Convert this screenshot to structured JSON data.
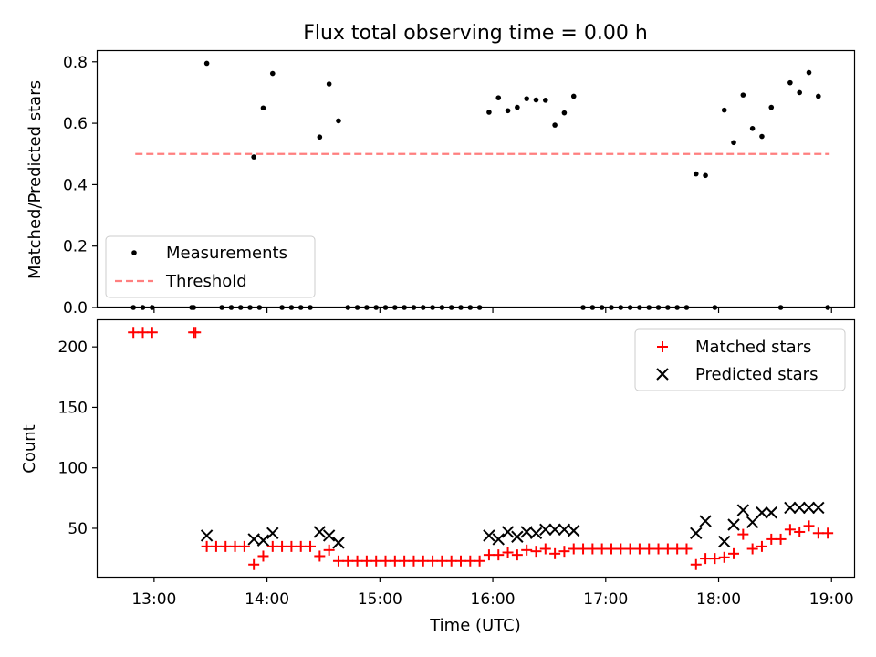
{
  "chart_data": [
    {
      "type": "scatter",
      "title": "Flux total observing time = 0.00 h",
      "xlabel": "",
      "ylabel": "Matched/Predicted stars",
      "xlim": [
        "12:30",
        "19:12"
      ],
      "ylim": [
        0,
        0.835
      ],
      "yticks": [
        0.0,
        0.2,
        0.4,
        0.6,
        0.8
      ],
      "ytick_labels": [
        "0.0",
        "0.2",
        "0.4",
        "0.6",
        "0.8"
      ],
      "legend_position": "lower-left",
      "threshold": {
        "name": "Threshold",
        "value": 0.5,
        "x_start": "12:50",
        "x_end": "18:59",
        "color": "#ff7f7f",
        "style": "dashed"
      },
      "series": [
        {
          "name": "Measurements",
          "color": "#000000",
          "marker": "dot",
          "points": [
            [
              "12:49",
              0
            ],
            [
              "12:54",
              0
            ],
            [
              "12:59",
              0
            ],
            [
              "13:20",
              0
            ],
            [
              "13:21",
              0
            ],
            [
              "13:28",
              0.795
            ],
            [
              "13:36",
              0
            ],
            [
              "13:41",
              0
            ],
            [
              "13:46",
              0
            ],
            [
              "13:51",
              0
            ],
            [
              "13:56",
              0
            ],
            [
              "13:53",
              0.49
            ],
            [
              "13:58",
              0.65
            ],
            [
              "14:03",
              0.762
            ],
            [
              "14:08",
              0
            ],
            [
              "14:13",
              0
            ],
            [
              "14:18",
              0
            ],
            [
              "14:23",
              0
            ],
            [
              "14:28",
              0.555
            ],
            [
              "14:33",
              0.728
            ],
            [
              "14:38",
              0.608
            ],
            [
              "14:43",
              0
            ],
            [
              "14:48",
              0
            ],
            [
              "14:53",
              0
            ],
            [
              "14:58",
              0
            ],
            [
              "15:03",
              0
            ],
            [
              "15:08",
              0
            ],
            [
              "15:13",
              0
            ],
            [
              "15:18",
              0
            ],
            [
              "15:23",
              0
            ],
            [
              "15:28",
              0
            ],
            [
              "15:33",
              0
            ],
            [
              "15:38",
              0
            ],
            [
              "15:43",
              0
            ],
            [
              "15:48",
              0
            ],
            [
              "15:53",
              0
            ],
            [
              "15:58",
              0.636
            ],
            [
              "16:03",
              0.683
            ],
            [
              "16:08",
              0.641
            ],
            [
              "16:13",
              0.652
            ],
            [
              "16:18",
              0.68
            ],
            [
              "16:23",
              0.676
            ],
            [
              "16:28",
              0.675
            ],
            [
              "16:33",
              0.594
            ],
            [
              "16:38",
              0.634
            ],
            [
              "16:43",
              0.688
            ],
            [
              "16:48",
              0
            ],
            [
              "16:53",
              0
            ],
            [
              "16:58",
              0
            ],
            [
              "17:03",
              0
            ],
            [
              "17:08",
              0
            ],
            [
              "17:13",
              0
            ],
            [
              "17:18",
              0
            ],
            [
              "17:23",
              0
            ],
            [
              "17:28",
              0
            ],
            [
              "17:33",
              0
            ],
            [
              "17:38",
              0
            ],
            [
              "17:43",
              0
            ],
            [
              "17:48",
              0.435
            ],
            [
              "17:53",
              0.43
            ],
            [
              "17:58",
              0
            ],
            [
              "18:03",
              0.643
            ],
            [
              "18:08",
              0.537
            ],
            [
              "18:13",
              0.692
            ],
            [
              "18:18",
              0.583
            ],
            [
              "18:23",
              0.557
            ],
            [
              "18:28",
              0.652
            ],
            [
              "18:33",
              0
            ],
            [
              "18:38",
              0.732
            ],
            [
              "18:43",
              0.7
            ],
            [
              "18:48",
              0.765
            ],
            [
              "18:53",
              0.688
            ],
            [
              "18:58",
              0
            ]
          ]
        }
      ]
    },
    {
      "type": "scatter",
      "title": "",
      "xlabel": "Time (UTC)",
      "ylabel": "Count",
      "xlim": [
        "12:30",
        "19:12"
      ],
      "ylim": [
        10,
        222
      ],
      "yticks": [
        50,
        100,
        150,
        200
      ],
      "ytick_labels": [
        "50",
        "100",
        "150",
        "200"
      ],
      "xticks": [
        "13:00",
        "14:00",
        "15:00",
        "16:00",
        "17:00",
        "18:00",
        "19:00"
      ],
      "legend_position": "top-right",
      "series": [
        {
          "name": "Matched stars",
          "color": "#ff0000",
          "marker": "plus",
          "points": [
            [
              "12:49",
              212
            ],
            [
              "12:54",
              212
            ],
            [
              "12:59",
              212
            ],
            [
              "13:21",
              212
            ],
            [
              "13:22",
              212
            ],
            [
              "13:28",
              35
            ],
            [
              "13:33",
              35
            ],
            [
              "13:38",
              35
            ],
            [
              "13:43",
              35
            ],
            [
              "13:48",
              35
            ],
            [
              "13:53",
              20
            ],
            [
              "13:58",
              27
            ],
            [
              "14:03",
              35
            ],
            [
              "14:08",
              35
            ],
            [
              "14:13",
              35
            ],
            [
              "14:18",
              35
            ],
            [
              "14:23",
              35
            ],
            [
              "14:28",
              27
            ],
            [
              "14:33",
              32
            ],
            [
              "14:38",
              23
            ],
            [
              "14:43",
              23
            ],
            [
              "14:48",
              23
            ],
            [
              "14:53",
              23
            ],
            [
              "14:58",
              23
            ],
            [
              "15:03",
              23
            ],
            [
              "15:08",
              23
            ],
            [
              "15:13",
              23
            ],
            [
              "15:18",
              23
            ],
            [
              "15:23",
              23
            ],
            [
              "15:28",
              23
            ],
            [
              "15:33",
              23
            ],
            [
              "15:38",
              23
            ],
            [
              "15:43",
              23
            ],
            [
              "15:48",
              23
            ],
            [
              "15:53",
              23
            ],
            [
              "15:58",
              28
            ],
            [
              "16:03",
              28
            ],
            [
              "16:08",
              30
            ],
            [
              "16:13",
              28
            ],
            [
              "16:18",
              32
            ],
            [
              "16:23",
              31
            ],
            [
              "16:28",
              33
            ],
            [
              "16:33",
              29
            ],
            [
              "16:38",
              31
            ],
            [
              "16:43",
              33
            ],
            [
              "16:48",
              33
            ],
            [
              "16:53",
              33
            ],
            [
              "16:58",
              33
            ],
            [
              "17:03",
              33
            ],
            [
              "17:08",
              33
            ],
            [
              "17:13",
              33
            ],
            [
              "17:18",
              33
            ],
            [
              "17:23",
              33
            ],
            [
              "17:28",
              33
            ],
            [
              "17:33",
              33
            ],
            [
              "17:38",
              33
            ],
            [
              "17:43",
              33
            ],
            [
              "17:48",
              20
            ],
            [
              "17:53",
              25
            ],
            [
              "17:58",
              25
            ],
            [
              "18:03",
              26
            ],
            [
              "18:08",
              29
            ],
            [
              "18:13",
              45
            ],
            [
              "18:18",
              33
            ],
            [
              "18:23",
              35
            ],
            [
              "18:28",
              41
            ],
            [
              "18:33",
              41
            ],
            [
              "18:38",
              49
            ],
            [
              "18:43",
              47
            ],
            [
              "18:48",
              52
            ],
            [
              "18:53",
              46
            ],
            [
              "18:58",
              46
            ]
          ]
        },
        {
          "name": "Predicted stars",
          "color": "#000000",
          "marker": "cross",
          "points": [
            [
              "13:28",
              44
            ],
            [
              "13:53",
              41
            ],
            [
              "13:58",
              40
            ],
            [
              "14:03",
              46
            ],
            [
              "14:28",
              47
            ],
            [
              "14:33",
              44
            ],
            [
              "14:38",
              38
            ],
            [
              "15:58",
              44
            ],
            [
              "16:03",
              41
            ],
            [
              "16:08",
              47
            ],
            [
              "16:13",
              43
            ],
            [
              "16:18",
              47
            ],
            [
              "16:23",
              46
            ],
            [
              "16:28",
              49
            ],
            [
              "16:33",
              49
            ],
            [
              "16:38",
              49
            ],
            [
              "16:43",
              48
            ],
            [
              "17:48",
              46
            ],
            [
              "17:53",
              56
            ],
            [
              "18:03",
              39
            ],
            [
              "18:08",
              53
            ],
            [
              "18:13",
              65
            ],
            [
              "18:18",
              55
            ],
            [
              "18:23",
              63
            ],
            [
              "18:28",
              63
            ],
            [
              "18:38",
              67
            ],
            [
              "18:43",
              67
            ],
            [
              "18:48",
              67
            ],
            [
              "18:53",
              67
            ]
          ]
        }
      ]
    }
  ]
}
